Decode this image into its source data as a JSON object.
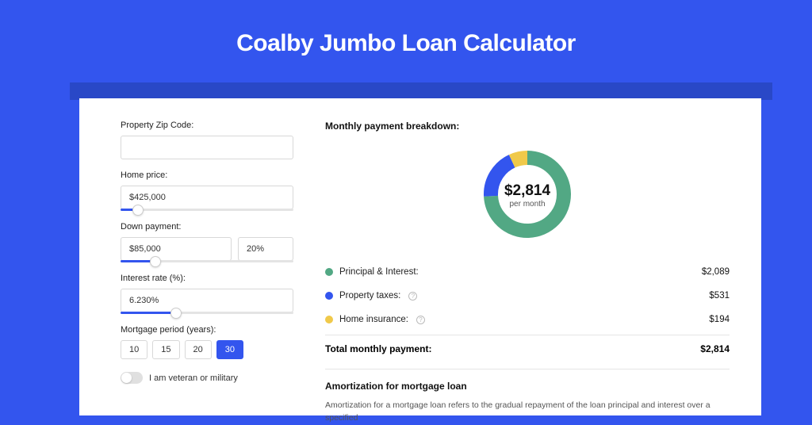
{
  "page": {
    "title": "Coalby Jumbo Loan Calculator",
    "background_color": "#3355ee",
    "accent_bar_color": "#2948c7",
    "card_bg": "#ffffff"
  },
  "form": {
    "zip": {
      "label": "Property Zip Code:",
      "value": ""
    },
    "home_price": {
      "label": "Home price:",
      "value": "$425,000",
      "slider_pct": 10
    },
    "down_payment": {
      "label": "Down payment:",
      "amount": "$85,000",
      "percent": "20%",
      "slider_pct": 20
    },
    "interest_rate": {
      "label": "Interest rate (%):",
      "value": "6.230%",
      "slider_pct": 32
    },
    "mortgage_period": {
      "label": "Mortgage period (years):",
      "options": [
        "10",
        "15",
        "20",
        "30"
      ],
      "active": "30"
    },
    "veteran": {
      "label": "I am veteran or military",
      "on": false
    }
  },
  "breakdown": {
    "title": "Monthly payment breakdown:",
    "center_amount": "$2,814",
    "center_sub": "per month",
    "items": [
      {
        "label": "Principal & Interest:",
        "value": "$2,089",
        "color": "#52a884",
        "pct": 74.2,
        "info": false
      },
      {
        "label": "Property taxes:",
        "value": "$531",
        "color": "#3355ee",
        "pct": 18.9,
        "info": true
      },
      {
        "label": "Home insurance:",
        "value": "$194",
        "color": "#f0c94a",
        "pct": 6.9,
        "info": true
      }
    ],
    "total_label": "Total monthly payment:",
    "total_value": "$2,814",
    "donut": {
      "radius": 46,
      "stroke": 18
    }
  },
  "amortization": {
    "title": "Amortization for mortgage loan",
    "text": "Amortization for a mortgage loan refers to the gradual repayment of the loan principal and interest over a specified"
  }
}
